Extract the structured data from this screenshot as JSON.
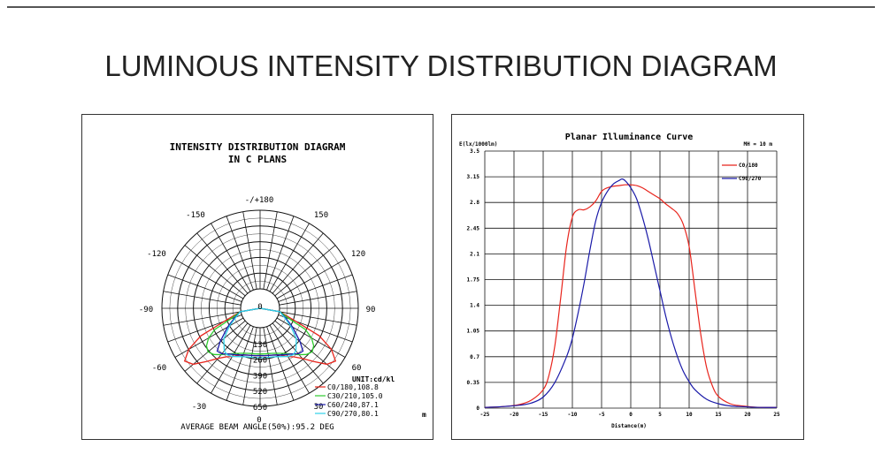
{
  "page_title": "LUMINOUS INTENSITY DISTRIBUTION DIAGRAM",
  "chart_data": [
    {
      "type": "polar",
      "title": "INTENSITY DISTRIBUTION DIAGRAM",
      "subtitle": "IN C PLANS",
      "angle_labels": {
        "top": "-/+180",
        "upper_left": "-150",
        "upper_right": "150",
        "left_upper": "-120",
        "right_upper": "120",
        "left": "-90",
        "right": "90",
        "lower_left": "-60",
        "lower_right": "60",
        "bottom_left": "-30",
        "bottom_right": "30",
        "bottom": "0"
      },
      "radial_labels": [
        "0",
        "130",
        "260",
        "390",
        "520",
        "650"
      ],
      "unit": "UNIT:cd/kl",
      "legend": [
        "C0/180,108.8",
        "C30/210,105.0",
        "C60/240,87.1",
        "C90/270,80.1"
      ],
      "series_colors": [
        "#e8241c",
        "#2ecc2e",
        "#1a1aa8",
        "#2fd0e8"
      ],
      "series": [
        {
          "angles": [
            -90,
            -80,
            -70,
            -65,
            -60,
            -55,
            -50,
            -45,
            -40,
            -35,
            -30,
            -25,
            -20,
            -15,
            -10,
            -5,
            0,
            5,
            10,
            15,
            20,
            25,
            30,
            35,
            40,
            45,
            50,
            55,
            60,
            65,
            70,
            80,
            90
          ],
          "values": [
            0,
            5,
            150,
            380,
            520,
            600,
            560,
            460,
            380,
            330,
            300,
            270,
            250,
            240,
            235,
            232,
            230,
            232,
            235,
            240,
            250,
            270,
            300,
            330,
            380,
            460,
            560,
            600,
            520,
            380,
            150,
            5,
            0
          ]
        },
        {
          "angles": [
            -90,
            -80,
            -70,
            -65,
            -60,
            -55,
            -50,
            -45,
            -40,
            -35,
            -30,
            -25,
            -20,
            -15,
            -10,
            -5,
            0,
            5,
            10,
            15,
            20,
            25,
            30,
            35,
            40,
            45,
            50,
            55,
            60,
            65,
            70,
            80,
            90
          ],
          "values": [
            0,
            5,
            100,
            250,
            330,
            380,
            400,
            380,
            340,
            300,
            270,
            250,
            235,
            225,
            220,
            218,
            217,
            218,
            220,
            225,
            235,
            250,
            270,
            300,
            340,
            380,
            400,
            380,
            330,
            250,
            100,
            5,
            0
          ]
        },
        {
          "angles": [
            -90,
            -80,
            -70,
            -60,
            -50,
            -45,
            -40,
            -35,
            -30,
            -25,
            -20,
            -15,
            -10,
            -5,
            0,
            5,
            10,
            15,
            20,
            25,
            30,
            35,
            40,
            45,
            50,
            60,
            70,
            80,
            90
          ],
          "values": [
            0,
            5,
            60,
            150,
            270,
            340,
            330,
            300,
            280,
            265,
            250,
            240,
            235,
            232,
            230,
            232,
            235,
            240,
            250,
            265,
            280,
            300,
            330,
            340,
            270,
            150,
            60,
            5,
            0
          ]
        },
        {
          "angles": [
            -90,
            -80,
            -70,
            -60,
            -50,
            -40,
            -35,
            -30,
            -25,
            -20,
            -15,
            -10,
            -5,
            0,
            5,
            10,
            15,
            20,
            25,
            30,
            35,
            40,
            50,
            60,
            70,
            80,
            90
          ],
          "values": [
            0,
            5,
            50,
            130,
            230,
            300,
            310,
            300,
            280,
            265,
            255,
            250,
            248,
            247,
            248,
            250,
            255,
            265,
            280,
            300,
            310,
            300,
            230,
            130,
            50,
            5,
            0
          ]
        }
      ],
      "rmax": 650,
      "footer": "AVERAGE BEAM ANGLE(50%):95.2 DEG",
      "corner_mark": "m"
    },
    {
      "type": "line",
      "title": "Planar Illuminance Curve",
      "ylabel": "E(lx/1000lm)",
      "xlabel": "Distance(m)",
      "mh_label": "MH = 10 m",
      "xlim": [
        -25,
        25
      ],
      "ylim": [
        0,
        3.5
      ],
      "x_ticks": [
        "-25",
        "-20",
        "-15",
        "-10",
        "-5",
        "0",
        "5",
        "10",
        "15",
        "20",
        "25"
      ],
      "y_ticks": [
        "0",
        "0.35",
        "0.7",
        "1.05",
        "1.4",
        "1.75",
        "2.1",
        "2.45",
        "2.8",
        "3.15",
        "3.5"
      ],
      "series": [
        {
          "name": "C0/180",
          "color": "#e8241c",
          "x": [
            -25,
            -22,
            -19,
            -17,
            -15,
            -14,
            -13,
            -12,
            -11,
            -10,
            -9,
            -8,
            -7,
            -6,
            -5,
            -4,
            -3,
            -2,
            -1,
            0,
            1,
            2,
            3,
            4,
            5,
            6,
            7,
            8,
            9,
            10,
            11,
            12,
            13,
            14,
            15,
            17,
            19,
            22,
            25
          ],
          "y": [
            0.01,
            0.02,
            0.05,
            0.11,
            0.25,
            0.45,
            0.85,
            1.5,
            2.2,
            2.6,
            2.7,
            2.7,
            2.74,
            2.82,
            2.95,
            3.0,
            3.02,
            3.03,
            3.04,
            3.04,
            3.03,
            3.0,
            2.95,
            2.9,
            2.85,
            2.78,
            2.72,
            2.65,
            2.5,
            2.2,
            1.6,
            1.0,
            0.55,
            0.3,
            0.16,
            0.06,
            0.03,
            0.01,
            0.01
          ]
        },
        {
          "name": "C90/270",
          "color": "#1a1aa8",
          "x": [
            -25,
            -22,
            -19,
            -17,
            -15,
            -13,
            -11,
            -10,
            -9,
            -8,
            -7,
            -6,
            -5,
            -4,
            -3,
            -2,
            -1.5,
            -1,
            0,
            1,
            2,
            3,
            4,
            5,
            6,
            7,
            8,
            9,
            10,
            11,
            13,
            15,
            17,
            19,
            22,
            25
          ],
          "y": [
            0.01,
            0.02,
            0.04,
            0.07,
            0.15,
            0.35,
            0.7,
            0.95,
            1.3,
            1.7,
            2.15,
            2.55,
            2.8,
            2.95,
            3.05,
            3.1,
            3.12,
            3.1,
            3.0,
            2.85,
            2.6,
            2.3,
            1.95,
            1.6,
            1.25,
            0.95,
            0.7,
            0.5,
            0.36,
            0.25,
            0.12,
            0.06,
            0.03,
            0.02,
            0.01,
            0.01
          ]
        }
      ],
      "grid": true,
      "legend_position": "top-right"
    }
  ]
}
